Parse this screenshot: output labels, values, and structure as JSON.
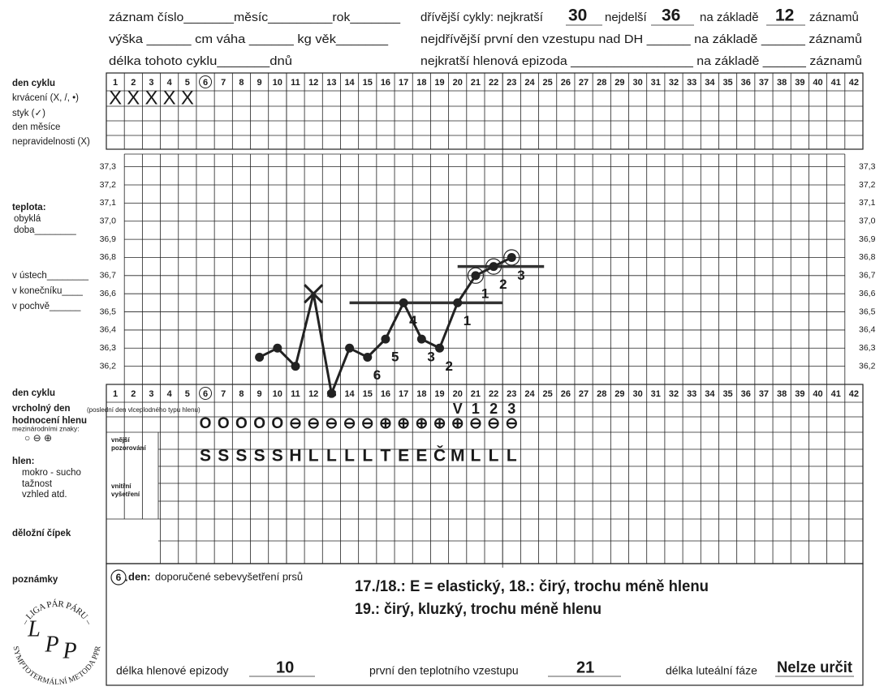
{
  "header": {
    "line1": "záznam číslo_______měsíc_________rok_______",
    "line2": "výška ______ cm   váha ______ kg   věk_______",
    "line3": "délka tohoto cyklu_______dnů",
    "prev_label_a": "dřívější cykly: nejkratší",
    "shortest": 30,
    "prev_label_b": "nejdelší",
    "longest": 36,
    "prev_label_c": "na základě",
    "records": 12,
    "prev_label_d": "záznamů",
    "line5": "nejdřívější první den vzestupu nad DH ______ na základě ______ záznamů",
    "line6": "nejkratší hlenová epizoda _________________ na základě ______ záznamů"
  },
  "row_labels": {
    "den_cyklu": "den cyklu",
    "krvaceni": "krvácení (X, /, •)",
    "styk": "styk (✓)",
    "den_mesice": "den měsíce",
    "nepravidelnosti": "nepravidelnosti (X)",
    "teplota": "teplota:",
    "obykla": "obyklá",
    "doba": "doba________",
    "v_ustech": "v ústech________",
    "v_konecniku": "v konečníku____",
    "v_pochve": "v pochvě______",
    "den_cyklu_2": "den cyklu",
    "vrcholny_den": "vrcholný den",
    "vrcholny_note": "(poslední den vlceplodného typu hlenu)",
    "hodnoceni": "hodnocení hlenu",
    "znaky": "mezinárodními znaky:",
    "znaky_symbols": "○ ⊖ ⊕",
    "hlen": "hlen:",
    "mokro": "mokro - sucho",
    "taznost": "tažnost",
    "vzhled": "vzhled atd.",
    "vnejsi_1": "vnější",
    "vnejsi_2": "pozorování",
    "vnitrni_1": "vnitřní",
    "vnitrni_2": "vyšetření",
    "cipek": "děložní čípek",
    "poznamky": "poznámky"
  },
  "days": [
    1,
    2,
    3,
    4,
    5,
    6,
    7,
    8,
    9,
    10,
    11,
    12,
    13,
    14,
    15,
    16,
    17,
    18,
    19,
    20,
    21,
    22,
    23,
    24,
    25,
    26,
    27,
    28,
    29,
    30,
    31,
    32,
    33,
    34,
    35,
    36,
    37,
    38,
    39,
    40,
    41,
    42
  ],
  "bleeding": [
    "X",
    "X",
    "X",
    "X",
    "X",
    null,
    null,
    null,
    null,
    null,
    null,
    null,
    null,
    null,
    null,
    null,
    null,
    null,
    null,
    null,
    null,
    null,
    null,
    null,
    null,
    null,
    null,
    null,
    null,
    null,
    null,
    null,
    null,
    null,
    null,
    null,
    null,
    null,
    null,
    null,
    null,
    null
  ],
  "temperature": {
    "ylim": [
      36.1,
      37.37
    ],
    "yticks": [
      {
        "value": 37.3,
        "label": "37,3"
      },
      {
        "value": 37.2,
        "label": "37,2"
      },
      {
        "value": 37.1,
        "label": "37,1"
      },
      {
        "value": 37.0,
        "label": "37,0"
      },
      {
        "value": 36.9,
        "label": "36,9"
      },
      {
        "value": 36.8,
        "label": "36,8"
      },
      {
        "value": 36.7,
        "label": "36,7"
      },
      {
        "value": 36.6,
        "label": "36,6"
      },
      {
        "value": 36.5,
        "label": "36,5"
      },
      {
        "value": 36.4,
        "label": "36,4"
      },
      {
        "value": 36.3,
        "label": "36,3"
      },
      {
        "value": 36.2,
        "label": "36,2"
      }
    ],
    "values": [
      null,
      null,
      null,
      null,
      null,
      null,
      null,
      null,
      36.25,
      36.3,
      36.2,
      36.6,
      36.05,
      36.3,
      36.25,
      36.35,
      36.55,
      36.35,
      36.3,
      36.55,
      36.7,
      36.75,
      36.8,
      null,
      null,
      null,
      null,
      null,
      null,
      null,
      null,
      null,
      null,
      null,
      null,
      null,
      null,
      null,
      null,
      null,
      null,
      null
    ],
    "point_style": [
      null,
      null,
      null,
      null,
      null,
      null,
      null,
      null,
      "dot",
      "dot",
      "dot",
      "cross",
      "dot",
      "dot",
      "dot",
      "dot",
      "dot",
      "dot",
      "dot",
      "dot",
      "ring",
      "ring",
      "ring",
      null,
      null,
      null,
      null,
      null,
      null,
      null,
      null,
      null,
      null,
      null,
      null,
      null,
      null,
      null,
      null,
      null,
      null,
      null
    ],
    "point_labels": [
      null,
      null,
      null,
      null,
      null,
      null,
      null,
      null,
      null,
      null,
      null,
      null,
      null,
      null,
      "6",
      "5",
      "4",
      "3",
      "2",
      "1",
      "1",
      "2",
      "3",
      null,
      null,
      null,
      null,
      null,
      null,
      null,
      null,
      null,
      null,
      null,
      null,
      null,
      null,
      null,
      null,
      null,
      null,
      null
    ],
    "cover_lines": [
      {
        "value": 36.55,
        "from_day": 14,
        "to_day": 22.5
      },
      {
        "value": 36.75,
        "from_day": 20,
        "to_day": 24.8
      }
    ]
  },
  "peak_day": [
    null,
    null,
    null,
    null,
    null,
    null,
    null,
    null,
    null,
    null,
    null,
    null,
    null,
    null,
    null,
    null,
    null,
    null,
    null,
    "V",
    "1",
    "2",
    "3",
    null,
    null,
    null,
    null,
    null,
    null,
    null,
    null,
    null,
    null,
    null,
    null,
    null,
    null,
    null,
    null,
    null,
    null,
    null
  ],
  "mucus_symbols": [
    null,
    null,
    null,
    null,
    null,
    "O",
    "O",
    "O",
    "O",
    "O",
    "⊖",
    "⊖",
    "⊖",
    "⊖",
    "⊖",
    "⊕",
    "⊕",
    "⊕",
    "⊕",
    "⊕",
    "⊖",
    "⊖",
    "⊖",
    null,
    null,
    null,
    null,
    null,
    null,
    null,
    null,
    null,
    null,
    null,
    null,
    null,
    null,
    null,
    null,
    null,
    null,
    null
  ],
  "mucus_letters": [
    null,
    null,
    null,
    null,
    null,
    "S",
    "S",
    "S",
    "S",
    "S",
    "H",
    "L",
    "L",
    "L",
    "L",
    "T",
    "E",
    "E",
    "Č",
    "M",
    "L",
    "L",
    "L",
    null,
    null,
    null,
    null,
    null,
    null,
    null,
    null,
    null,
    null,
    null,
    null,
    null,
    null,
    null,
    null,
    null,
    null,
    null
  ],
  "notes": {
    "day": 6,
    "dot": ".",
    "den": "den:",
    "text": "doporučené sebevyšetření prsů",
    "hand_1": "17./18.: E = elastický, 18.: čirý, trochu méně hlenu",
    "hand_2": "19.: čirý, kluzký, trochu méně hlenu"
  },
  "footer": {
    "mucus_label": "délka hlenové epizody",
    "mucus_value": 10,
    "rise_label": "první den teplotního vzestupu",
    "rise_value": 21,
    "luteal_label": "délka luteální fáze",
    "luteal_value": "Nelze určit"
  },
  "logo": {
    "top": "– LIGA PÁR PÁRU –",
    "bottom": "SYMPTOTERMÁLNÍ METODA PPR",
    "letters": [
      "L",
      "P",
      "P"
    ]
  }
}
